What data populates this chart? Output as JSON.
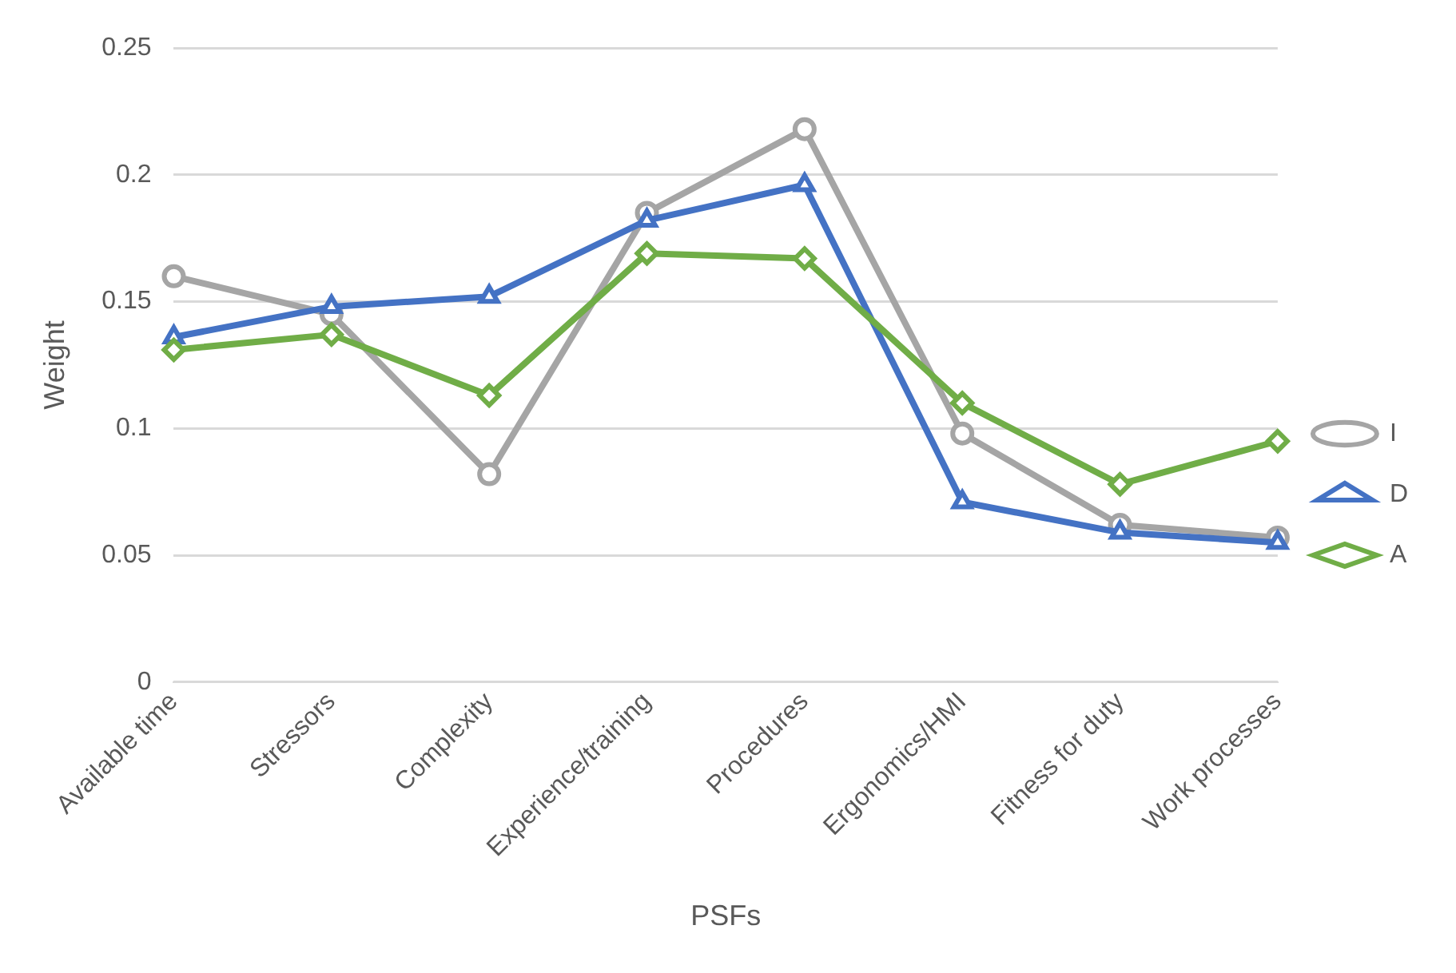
{
  "chart_data": {
    "type": "line",
    "xlabel": "PSFs",
    "ylabel": "Weight",
    "categories": [
      "Available time",
      "Stressors",
      "Complexity",
      "Experience/training",
      "Procedures",
      "Ergonomics/HMI",
      "Fitness for duty",
      "Work processes"
    ],
    "series": [
      {
        "name": "I",
        "color": "#a5a5a5",
        "marker": "circle",
        "values": [
          0.16,
          0.145,
          0.082,
          0.185,
          0.218,
          0.098,
          0.062,
          0.057
        ]
      },
      {
        "name": "D",
        "color": "#4472c4",
        "marker": "triangle",
        "values": [
          0.136,
          0.148,
          0.152,
          0.182,
          0.196,
          0.071,
          0.059,
          0.055
        ]
      },
      {
        "name": "A",
        "color": "#70ad47",
        "marker": "diamond",
        "values": [
          0.131,
          0.137,
          0.113,
          0.169,
          0.167,
          0.11,
          0.078,
          0.095
        ]
      }
    ],
    "ylim": [
      0,
      0.25
    ],
    "yticks": [
      0,
      0.05,
      0.1,
      0.15,
      0.2,
      0.25
    ],
    "grid": "y",
    "legend": "right"
  }
}
